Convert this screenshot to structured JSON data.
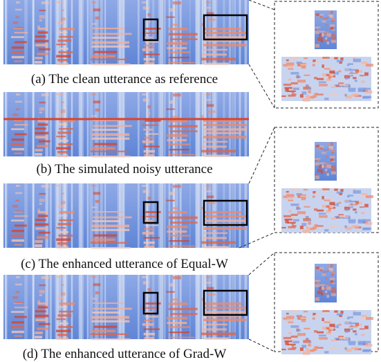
{
  "captions": [
    "(a) The clean utterance as reference",
    "(b) The simulated noisy utterance",
    "(c) The enhanced utterance of Equal-W",
    "(d) The enhanced utterance of Grad-W"
  ]
}
